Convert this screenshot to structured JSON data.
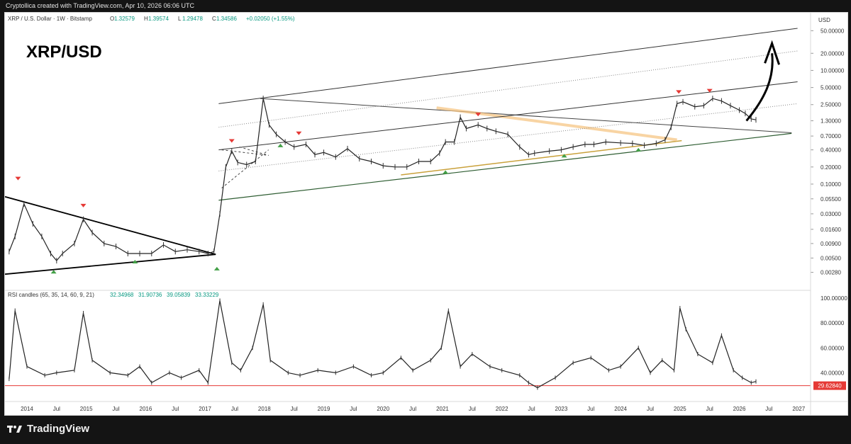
{
  "credit_line": "Cryptollica created with TradingView.com, Apr 10, 2026 06:06 UTC",
  "footer": {
    "brand": "TradingView",
    "logo_icon": "tradingview-logo-icon"
  },
  "header": {
    "symbol_line": "XRP / U.S. Dollar · 1W · Bitstamp",
    "ohlc": [
      {
        "label": "O",
        "value": "1.32579"
      },
      {
        "label": "H",
        "value": "1.39574"
      },
      {
        "label": "L",
        "value": "1.29478"
      },
      {
        "label": "C",
        "value": "1.34586"
      }
    ],
    "change": "+0.02050 (+1.55%)",
    "annotation": "XRP/USD",
    "currency_label": "USD",
    "colors": {
      "ohlc": "#089981",
      "annotation": "#000000"
    }
  },
  "chart_data": [
    {
      "type": "line",
      "name": "XRP/USD weekly price (log scale)",
      "y_scale": "log",
      "ylim": [
        0.0022,
        55
      ],
      "y_ticks": [
        "50.00000",
        "20.00000",
        "10.00000",
        "5.00000",
        "2.50000",
        "1.30000",
        "0.70000",
        "0.40000",
        "0.20000",
        "0.10000",
        "0.05500",
        "0.03000",
        "0.01600",
        "0.00900",
        "0.00500",
        "0.00280"
      ],
      "x_ticks": [
        "2014",
        "Jul",
        "2015",
        "Jul",
        "2016",
        "Jul",
        "2017",
        "Jul",
        "2018",
        "Jul",
        "2019",
        "Jul",
        "2020",
        "Jul",
        "2021",
        "Jul",
        "2022",
        "Jul",
        "2023",
        "Jul",
        "2024",
        "Jul",
        "2025",
        "Jul",
        "2026",
        "Jul",
        "2027"
      ],
      "x": [
        2013.7,
        2013.8,
        2013.95,
        2014.1,
        2014.25,
        2014.4,
        2014.5,
        2014.6,
        2014.8,
        2014.95,
        2015.1,
        2015.3,
        2015.5,
        2015.7,
        2015.9,
        2016.1,
        2016.3,
        2016.5,
        2016.7,
        2016.9,
        2017.05,
        2017.15,
        2017.25,
        2017.35,
        2017.45,
        2017.55,
        2017.7,
        2017.85,
        2017.98,
        2018.08,
        2018.2,
        2018.35,
        2018.5,
        2018.7,
        2018.85,
        2019.0,
        2019.2,
        2019.4,
        2019.6,
        2019.8,
        2020.0,
        2020.2,
        2020.4,
        2020.6,
        2020.8,
        2020.95,
        2021.05,
        2021.2,
        2021.3,
        2021.4,
        2021.6,
        2021.75,
        2021.9,
        2022.1,
        2022.3,
        2022.45,
        2022.55,
        2022.8,
        2023.0,
        2023.2,
        2023.4,
        2023.55,
        2023.75,
        2024.0,
        2024.2,
        2024.4,
        2024.6,
        2024.75,
        2024.85,
        2024.95,
        2025.05,
        2025.25,
        2025.4,
        2025.55,
        2025.7,
        2025.85,
        2026.0,
        2026.1,
        2026.2,
        2026.28
      ],
      "y": [
        0.0065,
        0.012,
        0.045,
        0.02,
        0.012,
        0.006,
        0.0045,
        0.006,
        0.009,
        0.024,
        0.014,
        0.009,
        0.008,
        0.006,
        0.006,
        0.006,
        0.0085,
        0.0065,
        0.007,
        0.0065,
        0.006,
        0.0065,
        0.03,
        0.2,
        0.38,
        0.24,
        0.22,
        0.25,
        3.2,
        1.1,
        0.75,
        0.55,
        0.45,
        0.5,
        0.33,
        0.36,
        0.3,
        0.42,
        0.28,
        0.25,
        0.21,
        0.2,
        0.2,
        0.25,
        0.25,
        0.35,
        0.55,
        0.55,
        1.5,
        0.95,
        1.1,
        0.95,
        0.85,
        0.75,
        0.45,
        0.33,
        0.35,
        0.38,
        0.4,
        0.45,
        0.5,
        0.5,
        0.55,
        0.53,
        0.52,
        0.48,
        0.52,
        0.6,
        1.0,
        2.6,
        2.8,
        2.3,
        2.4,
        3.2,
        2.9,
        2.4,
        2.0,
        1.75,
        1.4,
        1.35
      ]
    },
    {
      "type": "line",
      "name": "RSI candles (65, 35, 14, 60, 9, 21)",
      "legend": "RSI candles (65, 35, 14, 60, 9, 21)",
      "legend_values": [
        "32.34968",
        "31.90736",
        "39.05839",
        "33.33229"
      ],
      "current_value": "29.62840",
      "ylim": [
        22,
        100
      ],
      "y_ticks": [
        "100.00000",
        "80.00000",
        "60.00000",
        "40.00000"
      ],
      "x": [
        2013.7,
        2013.8,
        2014.0,
        2014.3,
        2014.5,
        2014.8,
        2014.95,
        2015.1,
        2015.4,
        2015.7,
        2015.9,
        2016.1,
        2016.4,
        2016.6,
        2016.9,
        2017.05,
        2017.25,
        2017.45,
        2017.6,
        2017.8,
        2017.98,
        2018.1,
        2018.4,
        2018.6,
        2018.9,
        2019.2,
        2019.5,
        2019.8,
        2020.0,
        2020.3,
        2020.5,
        2020.8,
        2020.98,
        2021.1,
        2021.3,
        2021.5,
        2021.8,
        2022.0,
        2022.3,
        2022.45,
        2022.6,
        2022.9,
        2023.2,
        2023.5,
        2023.8,
        2024.0,
        2024.3,
        2024.5,
        2024.7,
        2024.9,
        2025.0,
        2025.1,
        2025.3,
        2025.55,
        2025.7,
        2025.9,
        2026.05,
        2026.2,
        2026.28
      ],
      "y": [
        35,
        90,
        45,
        38,
        40,
        42,
        88,
        50,
        40,
        38,
        45,
        32,
        40,
        36,
        42,
        32,
        98,
        48,
        42,
        60,
        95,
        50,
        40,
        38,
        42,
        40,
        45,
        38,
        40,
        52,
        42,
        50,
        60,
        90,
        45,
        55,
        45,
        42,
        38,
        32,
        28,
        36,
        48,
        52,
        42,
        45,
        60,
        40,
        50,
        42,
        92,
        75,
        55,
        48,
        70,
        42,
        36,
        32,
        33
      ]
    }
  ]
}
